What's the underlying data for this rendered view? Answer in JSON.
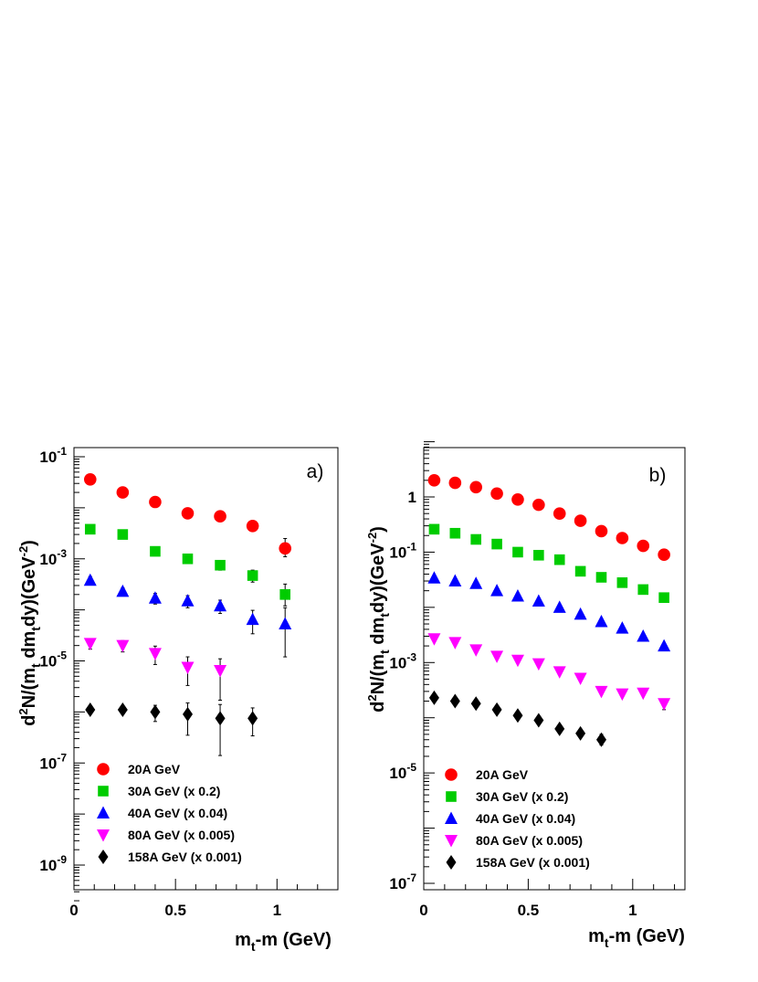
{
  "chart_data": [
    {
      "panel_label": "a)",
      "type": "scatter",
      "x_scale": "linear",
      "y_scale": "log",
      "xlim": [
        0,
        1.3
      ],
      "ylim": [
        2e-10,
        0.15
      ],
      "xticks": [
        0,
        0.5,
        1
      ],
      "xtick_labels": [
        "0",
        "0.5",
        "1"
      ],
      "ytick_exponents": [
        -1,
        -3,
        -5,
        -7,
        -9
      ],
      "ytick_labels": [
        {
          "base": "10",
          "exp": "-1"
        },
        {
          "base": "10",
          "exp": "-3"
        },
        {
          "base": "10",
          "exp": "-5"
        },
        {
          "base": "10",
          "exp": "-7"
        },
        {
          "base": "10",
          "exp": "-9"
        }
      ],
      "xlabel": {
        "main": "m",
        "sub": "t",
        "rest": "-m (GeV)"
      },
      "ylabel": {
        "parts": [
          {
            "t": "d",
            "s": "n"
          },
          {
            "t": "2",
            "s": "sup"
          },
          {
            "t": "N/(m",
            "s": "n"
          },
          {
            "t": "t",
            "s": "sub"
          },
          {
            "t": " dm",
            "s": "n"
          },
          {
            "t": "t",
            "s": "sub"
          },
          {
            "t": "dy)(GeV",
            "s": "n"
          },
          {
            "t": "-2",
            "s": "sup"
          },
          {
            "t": ")",
            "s": "n"
          }
        ]
      },
      "series": [
        {
          "name": "20A GeV",
          "marker": "circle",
          "color": "#ff0000",
          "points": [
            {
              "x": 0.08,
              "y": 0.036
            },
            {
              "x": 0.24,
              "y": 0.02
            },
            {
              "x": 0.4,
              "y": 0.013
            },
            {
              "x": 0.56,
              "y": 0.0078
            },
            {
              "x": 0.72,
              "y": 0.0068
            },
            {
              "x": 0.88,
              "y": 0.0044,
              "lo": 0.0035,
              "hi": 0.0056
            },
            {
              "x": 1.04,
              "y": 0.0016,
              "lo": 0.0011,
              "hi": 0.0025
            }
          ]
        },
        {
          "name": "30A GeV (x 0.2)",
          "marker": "square",
          "color": "#00cc00",
          "points": [
            {
              "x": 0.08,
              "y": 0.0038
            },
            {
              "x": 0.24,
              "y": 0.003
            },
            {
              "x": 0.4,
              "y": 0.0014
            },
            {
              "x": 0.56,
              "y": 0.001
            },
            {
              "x": 0.72,
              "y": 0.00075,
              "lo": 0.0006,
              "hi": 0.0009
            },
            {
              "x": 0.88,
              "y": 0.00047,
              "lo": 0.00035,
              "hi": 0.0006
            },
            {
              "x": 1.04,
              "y": 0.0002,
              "lo": 0.00012,
              "hi": 0.00032
            }
          ]
        },
        {
          "name": "40A GeV (x 0.04)",
          "marker": "triangle-up",
          "color": "#0000ff",
          "points": [
            {
              "x": 0.08,
              "y": 0.00038,
              "lo": 0.00031,
              "hi": 0.00045
            },
            {
              "x": 0.24,
              "y": 0.00023,
              "lo": 0.0002,
              "hi": 0.00027
            },
            {
              "x": 0.4,
              "y": 0.00017,
              "lo": 0.00013,
              "hi": 0.00021
            },
            {
              "x": 0.56,
              "y": 0.00015,
              "lo": 0.00011,
              "hi": 0.00019
            },
            {
              "x": 0.72,
              "y": 0.00012,
              "lo": 8.5e-05,
              "hi": 0.000155
            },
            {
              "x": 0.88,
              "y": 6.5e-05,
              "lo": 3.4e-05,
              "hi": 9.8e-05
            },
            {
              "x": 1.04,
              "y": 5.3e-05,
              "lo": 1.2e-05,
              "hi": 0.00011
            }
          ]
        },
        {
          "name": "80A GeV (x 0.005)",
          "marker": "triangle-down",
          "color": "#ff00ff",
          "points": [
            {
              "x": 0.08,
              "y": 2.2e-05,
              "lo": 1.7e-05,
              "hi": 2.7e-05
            },
            {
              "x": 0.24,
              "y": 2e-05,
              "lo": 1.5e-05,
              "hi": 2.5e-05
            },
            {
              "x": 0.4,
              "y": 1.4e-05,
              "lo": 8.5e-06,
              "hi": 1.95e-05
            },
            {
              "x": 0.56,
              "y": 7.5e-06,
              "lo": 3.3e-06,
              "hi": 1.2e-05
            },
            {
              "x": 0.72,
              "y": 6.5e-06,
              "lo": 1.7e-06,
              "hi": 1.1e-05
            }
          ]
        },
        {
          "name": "158A GeV (x 0.001)",
          "marker": "diamond",
          "color": "#000000",
          "points": [
            {
              "x": 0.08,
              "y": 1.1e-06,
              "lo": 9.5e-07,
              "hi": 1.25e-06
            },
            {
              "x": 0.24,
              "y": 1.1e-06,
              "lo": 9.5e-07,
              "hi": 1.25e-06
            },
            {
              "x": 0.4,
              "y": 1e-06,
              "lo": 6.5e-07,
              "hi": 1.35e-06
            },
            {
              "x": 0.56,
              "y": 9e-07,
              "lo": 3.5e-07,
              "hi": 1.5e-06
            },
            {
              "x": 0.72,
              "y": 7.5e-07,
              "lo": 1.4e-07,
              "hi": 1.4e-06
            },
            {
              "x": 0.88,
              "y": 7.5e-07,
              "lo": 3.4e-07,
              "hi": 1.2e-06
            }
          ]
        }
      ]
    },
    {
      "panel_label": "b)",
      "type": "scatter",
      "x_scale": "linear",
      "y_scale": "log",
      "xlim": [
        0,
        1.25
      ],
      "ylim": [
        1e-07,
        10
      ],
      "xticks": [
        0,
        0.5,
        1
      ],
      "xtick_labels": [
        "0",
        "0.5",
        "1"
      ],
      "ytick_exponents": [
        0,
        -1,
        -3,
        -5,
        -7
      ],
      "ytick_labels": [
        {
          "base": "1",
          "exp": ""
        },
        {
          "base": "10",
          "exp": "-1"
        },
        {
          "base": "10",
          "exp": "-3"
        },
        {
          "base": "10",
          "exp": "-5"
        },
        {
          "base": "10",
          "exp": "-7"
        }
      ],
      "xlabel": {
        "main": "m",
        "sub": "t",
        "rest": "-m (GeV)"
      },
      "ylabel": {
        "parts": [
          {
            "t": "d",
            "s": "n"
          },
          {
            "t": "2",
            "s": "sup"
          },
          {
            "t": "N/(m",
            "s": "n"
          },
          {
            "t": "t",
            "s": "sub"
          },
          {
            "t": " dm",
            "s": "n"
          },
          {
            "t": "t",
            "s": "sub"
          },
          {
            "t": "dy)(GeV",
            "s": "n"
          },
          {
            "t": "-2",
            "s": "sup"
          },
          {
            "t": ")",
            "s": "n"
          }
        ]
      },
      "series": [
        {
          "name": "20A GeV",
          "marker": "circle",
          "color": "#ff0000",
          "points": [
            {
              "x": 0.05,
              "y": 2.0
            },
            {
              "x": 0.15,
              "y": 1.8
            },
            {
              "x": 0.25,
              "y": 1.5
            },
            {
              "x": 0.35,
              "y": 1.15
            },
            {
              "x": 0.45,
              "y": 0.9
            },
            {
              "x": 0.55,
              "y": 0.72
            },
            {
              "x": 0.65,
              "y": 0.5
            },
            {
              "x": 0.75,
              "y": 0.37
            },
            {
              "x": 0.85,
              "y": 0.24
            },
            {
              "x": 0.95,
              "y": 0.18
            },
            {
              "x": 1.05,
              "y": 0.13
            },
            {
              "x": 1.15,
              "y": 0.09
            }
          ]
        },
        {
          "name": "30A GeV (x 0.2)",
          "marker": "square",
          "color": "#00cc00",
          "points": [
            {
              "x": 0.05,
              "y": 0.26
            },
            {
              "x": 0.15,
              "y": 0.22
            },
            {
              "x": 0.25,
              "y": 0.17
            },
            {
              "x": 0.35,
              "y": 0.14
            },
            {
              "x": 0.45,
              "y": 0.1
            },
            {
              "x": 0.55,
              "y": 0.088
            },
            {
              "x": 0.65,
              "y": 0.073
            },
            {
              "x": 0.75,
              "y": 0.045
            },
            {
              "x": 0.85,
              "y": 0.035
            },
            {
              "x": 0.95,
              "y": 0.028
            },
            {
              "x": 1.05,
              "y": 0.021
            },
            {
              "x": 1.15,
              "y": 0.015
            }
          ]
        },
        {
          "name": "40A GeV (x 0.04)",
          "marker": "triangle-up",
          "color": "#0000ff",
          "points": [
            {
              "x": 0.05,
              "y": 0.034
            },
            {
              "x": 0.15,
              "y": 0.03
            },
            {
              "x": 0.25,
              "y": 0.027
            },
            {
              "x": 0.35,
              "y": 0.02
            },
            {
              "x": 0.45,
              "y": 0.016
            },
            {
              "x": 0.55,
              "y": 0.013
            },
            {
              "x": 0.65,
              "y": 0.01
            },
            {
              "x": 0.75,
              "y": 0.0075
            },
            {
              "x": 0.85,
              "y": 0.0055
            },
            {
              "x": 0.95,
              "y": 0.0042
            },
            {
              "x": 1.05,
              "y": 0.003
            },
            {
              "x": 1.15,
              "y": 0.002
            }
          ]
        },
        {
          "name": "80A GeV (x 0.005)",
          "marker": "triangle-down",
          "color": "#ff00ff",
          "points": [
            {
              "x": 0.05,
              "y": 0.0027
            },
            {
              "x": 0.15,
              "y": 0.0023
            },
            {
              "x": 0.25,
              "y": 0.0017
            },
            {
              "x": 0.35,
              "y": 0.0013
            },
            {
              "x": 0.45,
              "y": 0.0011
            },
            {
              "x": 0.55,
              "y": 0.00095
            },
            {
              "x": 0.65,
              "y": 0.00068
            },
            {
              "x": 0.75,
              "y": 0.00052
            },
            {
              "x": 0.85,
              "y": 0.0003
            },
            {
              "x": 0.95,
              "y": 0.00027
            },
            {
              "x": 1.05,
              "y": 0.00028
            },
            {
              "x": 1.15,
              "y": 0.00018,
              "lo": 0.00014,
              "hi": 0.00022
            }
          ]
        },
        {
          "name": "158A GeV (x 0.001)",
          "marker": "diamond",
          "color": "#000000",
          "points": [
            {
              "x": 0.05,
              "y": 0.00023
            },
            {
              "x": 0.15,
              "y": 0.0002
            },
            {
              "x": 0.25,
              "y": 0.00018
            },
            {
              "x": 0.35,
              "y": 0.00014
            },
            {
              "x": 0.45,
              "y": 0.00011
            },
            {
              "x": 0.55,
              "y": 9e-05
            },
            {
              "x": 0.65,
              "y": 6.3e-05
            },
            {
              "x": 0.75,
              "y": 5.2e-05
            },
            {
              "x": 0.85,
              "y": 4e-05,
              "lo": 3.2e-05,
              "hi": 5e-05
            }
          ]
        }
      ]
    }
  ]
}
